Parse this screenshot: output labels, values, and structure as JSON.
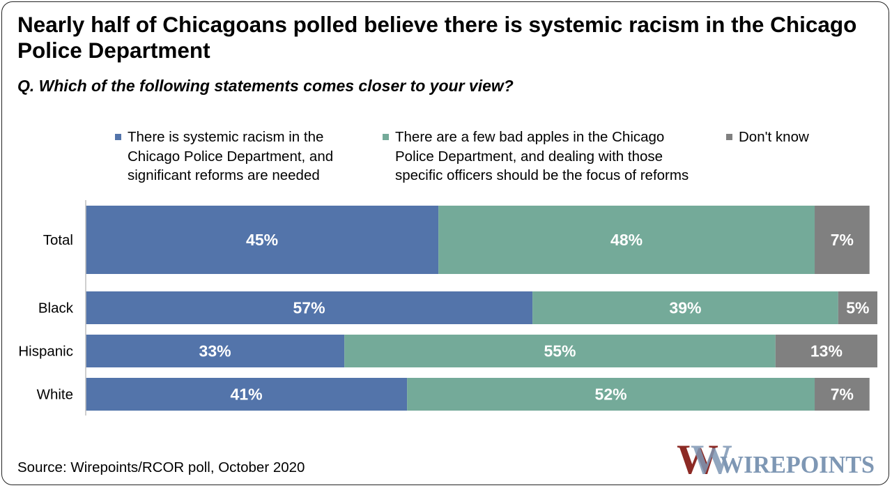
{
  "title": "Nearly half of Chicagoans polled believe there is systemic racism in the Chicago Police Department",
  "subtitle": "Q. Which of the following statements comes closer to your view?",
  "source": "Source: Wirepoints/RCOR poll, October 2020",
  "logo": {
    "text": "WIREPOINTS",
    "mark": "W",
    "colors": [
      "#8c2a25",
      "#7e97b4"
    ]
  },
  "colors": {
    "series": [
      "#5374aa",
      "#74aa99",
      "#808080"
    ],
    "data_label": "#ffffff",
    "axis": "#bfbfbf",
    "logo_text": "#7e97b4"
  },
  "chart_data": {
    "type": "bar",
    "orientation": "horizontal",
    "stacked": "100%",
    "categories": [
      "Total",
      "Black",
      "Hispanic",
      "White"
    ],
    "series": [
      {
        "name": "There is systemic racism in the\nChicago Police Department, and\nsignificant reforms are needed",
        "values": [
          45,
          57,
          33,
          41
        ]
      },
      {
        "name": "There are a few bad apples in the Chicago\nPolice Department, and dealing with those\nspecific officers should be the focus of reforms",
        "values": [
          48,
          39,
          55,
          52
        ]
      },
      {
        "name": "Don't know",
        "values": [
          7,
          5,
          13,
          7
        ]
      }
    ],
    "data_labels": [
      [
        "45%",
        "57%",
        "33%",
        "41%"
      ],
      [
        "48%",
        "39%",
        "55%",
        "52%"
      ],
      [
        "7%",
        "5%",
        "13%",
        "7%"
      ]
    ],
    "xlim": [
      0,
      101
    ],
    "legend": "top",
    "grid": false,
    "title": "Nearly half of Chicagoans polled believe there is systemic racism in the Chicago Police Department",
    "xlabel": "",
    "ylabel": ""
  }
}
